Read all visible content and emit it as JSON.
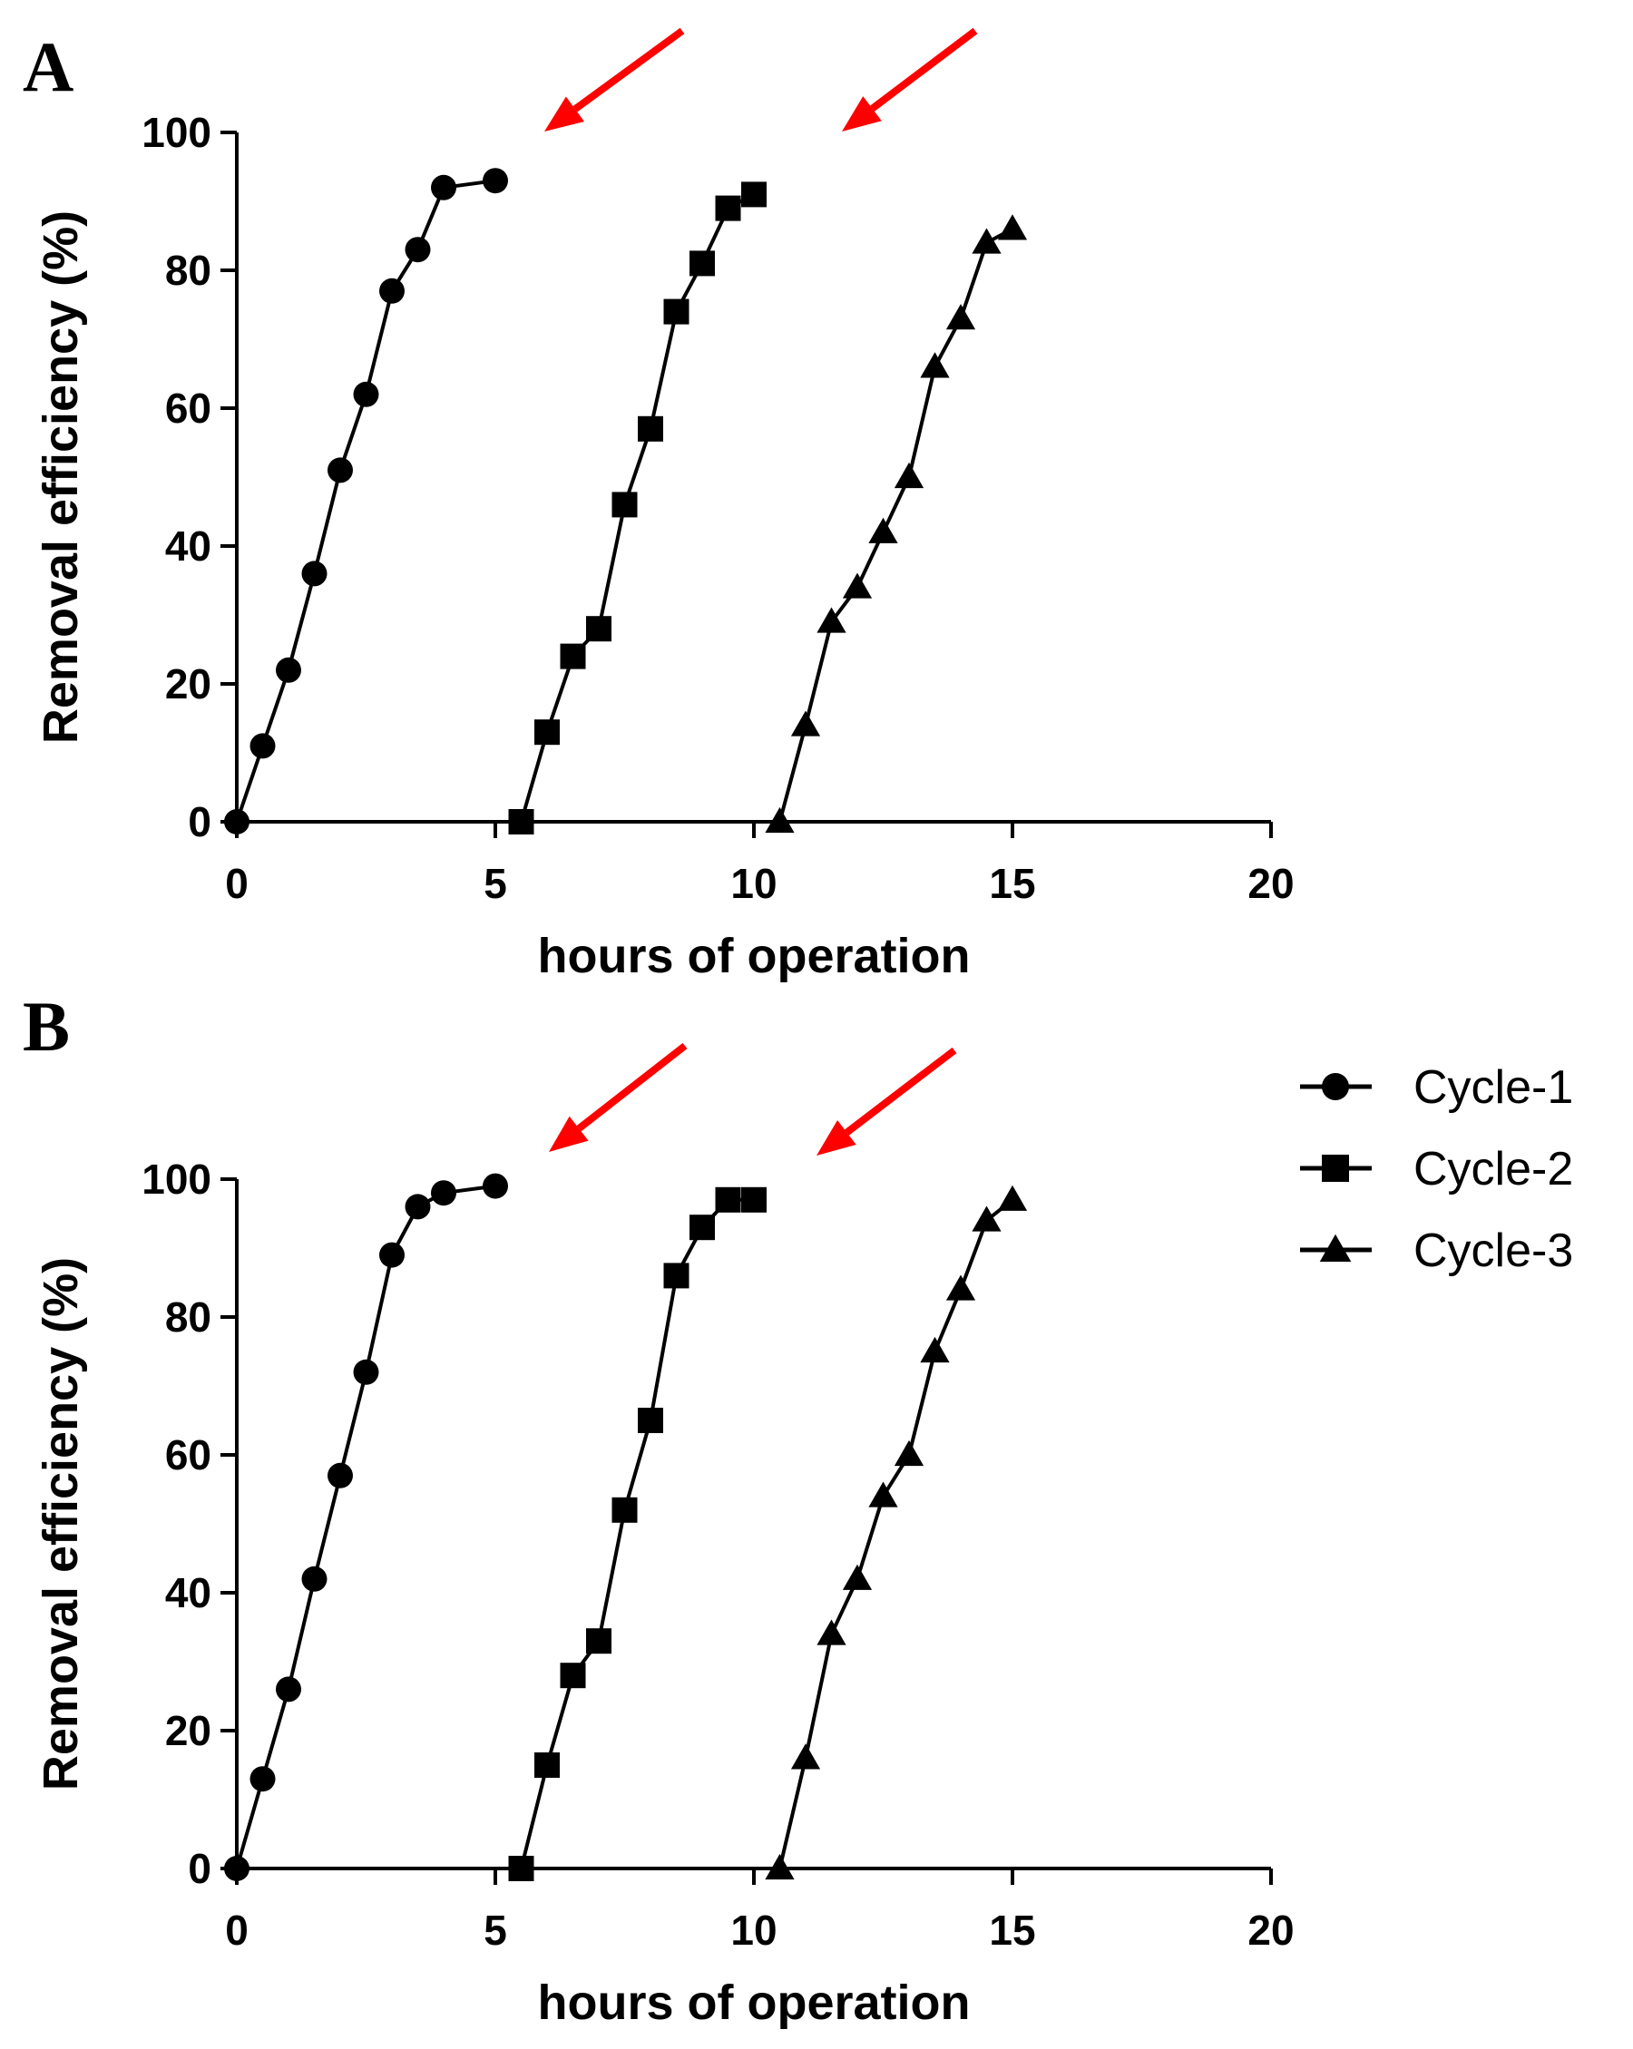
{
  "chart_data": [
    {
      "panel": "A",
      "type": "line",
      "xlabel": "hours of operation",
      "ylabel": "Removal efficiency (%)",
      "xlim": [
        0,
        20
      ],
      "ylim": [
        0,
        100
      ],
      "xticks": [
        "0",
        "5",
        "10",
        "15",
        "20"
      ],
      "yticks": [
        "0",
        "20",
        "40",
        "60",
        "80",
        "100"
      ],
      "grid": false,
      "annotations": [
        "red arrow between Cycle-1 and Cycle-2",
        "red arrow between Cycle-2 and Cycle-3"
      ],
      "series": [
        {
          "name": "Cycle-1",
          "marker": "circle",
          "x": [
            0,
            0.5,
            1,
            1.5,
            2,
            2.5,
            3,
            3.5,
            4,
            5
          ],
          "y": [
            0,
            11,
            22,
            36,
            51,
            62,
            77,
            83,
            92,
            93
          ]
        },
        {
          "name": "Cycle-2",
          "marker": "square",
          "x": [
            5.5,
            6,
            6.5,
            7,
            7.5,
            8,
            8.5,
            9,
            9.5,
            10
          ],
          "y": [
            0,
            13,
            24,
            28,
            46,
            57,
            74,
            81,
            89,
            91
          ]
        },
        {
          "name": "Cycle-3",
          "marker": "triangle",
          "x": [
            10.5,
            11,
            11.5,
            12,
            12.5,
            13,
            13.5,
            14,
            14.5,
            15
          ],
          "y": [
            0,
            14,
            29,
            34,
            42,
            50,
            66,
            73,
            84,
            86
          ]
        }
      ]
    },
    {
      "panel": "B",
      "type": "line",
      "xlabel": "hours of operation",
      "ylabel": "Removal efficiency (%)",
      "xlim": [
        0,
        20
      ],
      "ylim": [
        0,
        100
      ],
      "xticks": [
        "0",
        "5",
        "10",
        "15",
        "20"
      ],
      "yticks": [
        "0",
        "20",
        "40",
        "60",
        "80",
        "100"
      ],
      "grid": false,
      "legend_position": "top-right",
      "annotations": [
        "red arrow between Cycle-1 and Cycle-2",
        "red arrow between Cycle-2 and Cycle-3"
      ],
      "series": [
        {
          "name": "Cycle-1",
          "marker": "circle",
          "x": [
            0,
            0.5,
            1,
            1.5,
            2,
            2.5,
            3,
            3.5,
            4,
            5
          ],
          "y": [
            0,
            13,
            26,
            42,
            57,
            72,
            89,
            96,
            98,
            99
          ]
        },
        {
          "name": "Cycle-2",
          "marker": "square",
          "x": [
            5.5,
            6,
            6.5,
            7,
            7.5,
            8,
            8.5,
            9,
            9.5,
            10
          ],
          "y": [
            0,
            15,
            28,
            33,
            52,
            65,
            86,
            93,
            97,
            97
          ]
        },
        {
          "name": "Cycle-3",
          "marker": "triangle",
          "x": [
            10.5,
            11,
            11.5,
            12,
            12.5,
            13,
            13.5,
            14,
            14.5,
            15
          ],
          "y": [
            0,
            16,
            34,
            42,
            54,
            60,
            75,
            84,
            94,
            97
          ]
        }
      ]
    }
  ],
  "legend": [
    {
      "name": "Cycle-1",
      "marker": "circle"
    },
    {
      "name": "Cycle-2",
      "marker": "square"
    },
    {
      "name": "Cycle-3",
      "marker": "triangle"
    }
  ],
  "colors": {
    "series": "#000000",
    "arrow": "#ff0000",
    "background": "#ffffff"
  }
}
